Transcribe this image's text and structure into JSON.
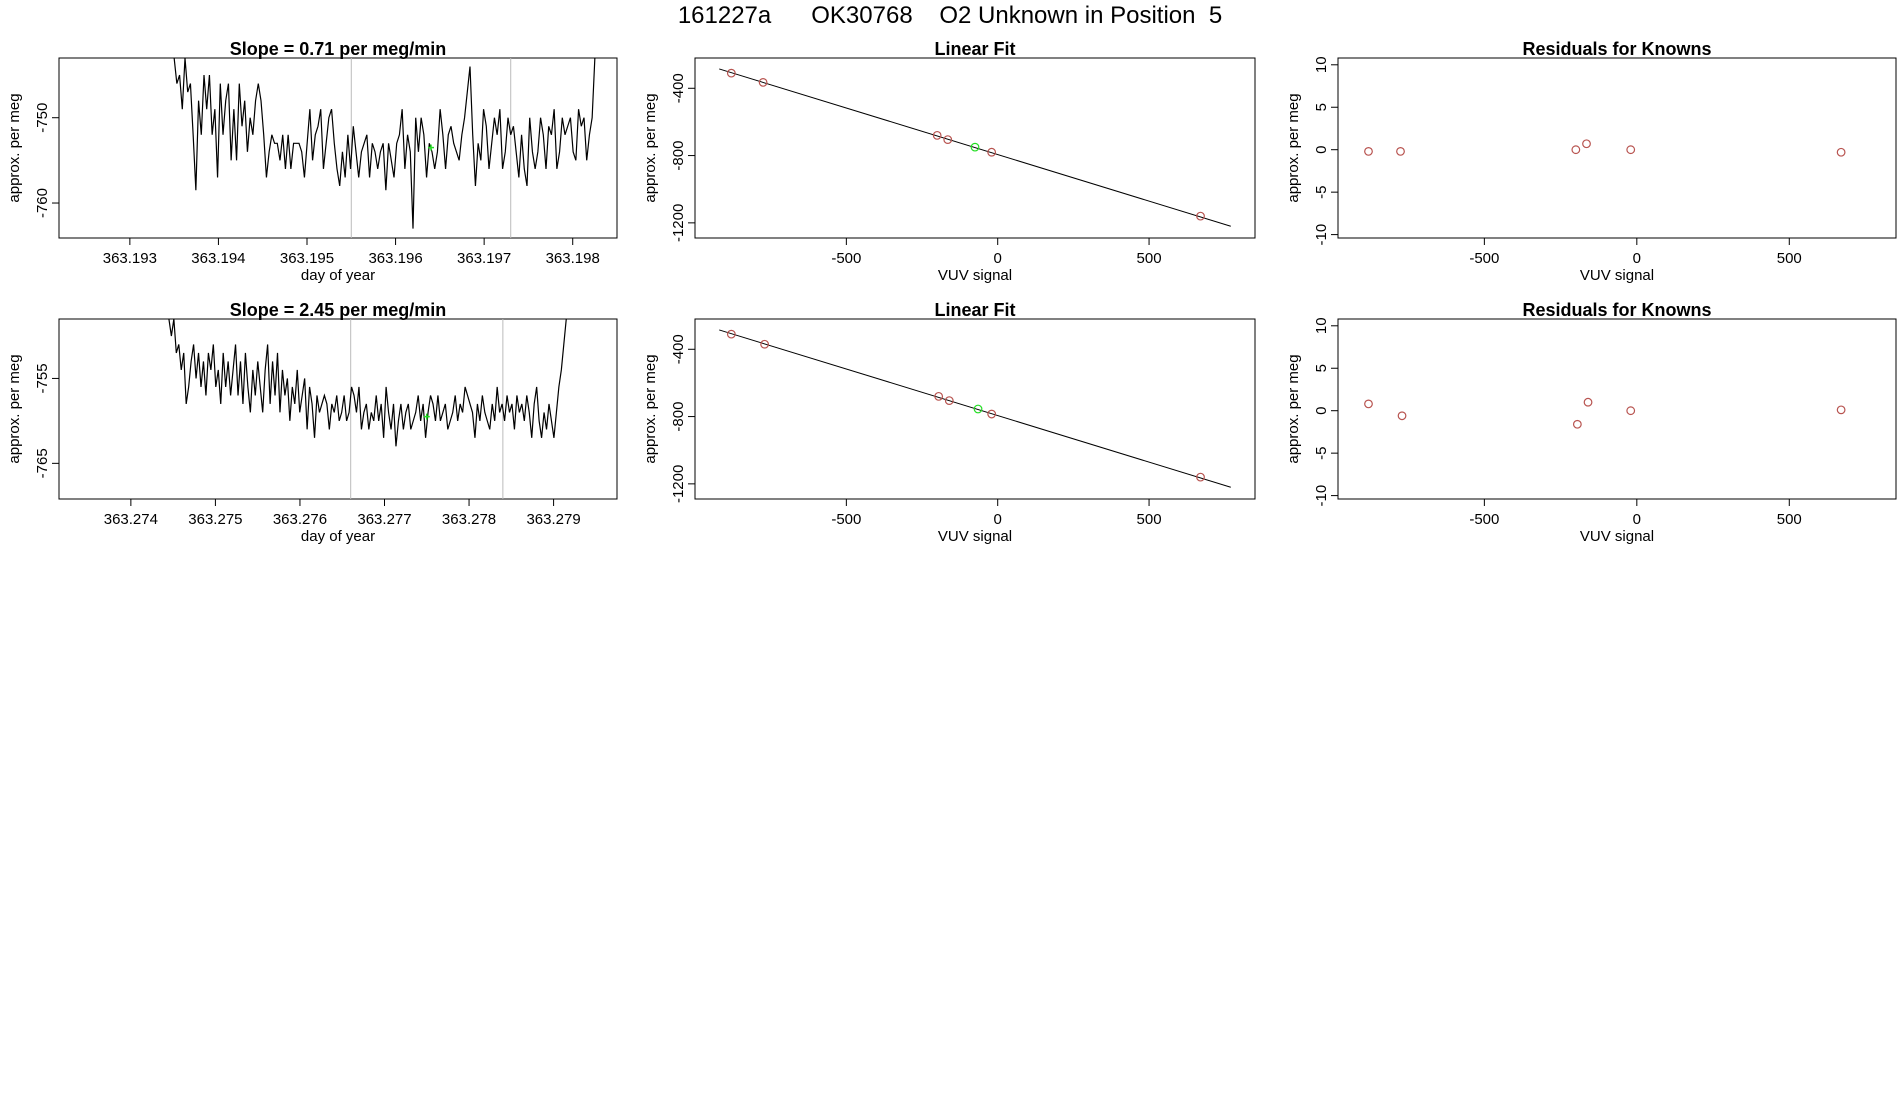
{
  "page": {
    "title": "161227a      OK30768    O2 Unknown in Position  5"
  },
  "colors": {
    "line": "#000000",
    "known_point": "#b85450",
    "unknown_point": "#22dd22",
    "vline": "#bbbbbb"
  },
  "chart_data": [
    {
      "type": "line",
      "title": "Slope =  0.71  per meg/min",
      "xlabel": "day of year",
      "ylabel": "approx. per meg",
      "xlim": [
        363.1922,
        363.1985
      ],
      "ylim": [
        -764.1,
        -743.0
      ],
      "xticks": [
        363.193,
        363.194,
        363.195,
        363.196,
        363.197,
        363.198
      ],
      "xtick_labels": [
        "363.193",
        "363.194",
        "363.195",
        "363.196",
        "363.197",
        "363.198"
      ],
      "yticks": [
        -760,
        -750
      ],
      "ytick_labels": [
        "-760",
        "-750"
      ],
      "vlines": [
        363.1955,
        363.1973
      ],
      "marker": {
        "x": 363.1964,
        "y": -753.5
      },
      "series_x_range": [
        363.1935,
        363.19825
      ],
      "series_y": [
        -743,
        -746,
        -745,
        -749,
        -743,
        -747,
        -746,
        -752,
        -758.5,
        -748,
        -752,
        -745,
        -749,
        -745,
        -752,
        -749,
        -757,
        -746,
        -752,
        -748,
        -746,
        -755,
        -749,
        -755,
        -746,
        -751,
        -748,
        -754,
        -750,
        -752,
        -748,
        -746,
        -748,
        -752,
        -757,
        -754,
        -752,
        -753,
        -753,
        -755,
        -752,
        -756,
        -752,
        -756,
        -753,
        -753,
        -753,
        -754,
        -757,
        -753,
        -749,
        -755,
        -752,
        -751,
        -749,
        -756,
        -753,
        -750,
        -749,
        -753,
        -756,
        -758,
        -754,
        -757,
        -752,
        -756,
        -751,
        -754,
        -757,
        -754,
        -753,
        -752,
        -757,
        -753,
        -754,
        -756,
        -754,
        -753,
        -758.5,
        -753,
        -755,
        -757,
        -753,
        -752,
        -749,
        -756,
        -752,
        -754,
        -763,
        -750,
        -754,
        -750,
        -752,
        -757,
        -753,
        -754,
        -756,
        -754,
        -749,
        -752,
        -756,
        -752,
        -751,
        -753,
        -754,
        -755,
        -752,
        -750,
        -747,
        -744,
        -752,
        -758,
        -753,
        -755,
        -749,
        -751,
        -756,
        -753,
        -750,
        -752,
        -749,
        -756,
        -754,
        -750,
        -752,
        -751,
        -754,
        -757,
        -752,
        -756,
        -758,
        -750,
        -754,
        -756,
        -754,
        -750,
        -752,
        -756,
        -751,
        -752,
        -749,
        -756,
        -754,
        -750,
        -752,
        -751,
        -750,
        -754,
        -755,
        -749,
        -751,
        -750,
        -755,
        -752,
        -750,
        -743
      ]
    },
    {
      "type": "scatter",
      "title": "Linear Fit",
      "xlabel": "VUV signal",
      "ylabel": "approx. per meg",
      "xlim": [
        -1000,
        850
      ],
      "ylim": [
        -1290,
        -220
      ],
      "xticks": [
        -500,
        0,
        500
      ],
      "xtick_labels": [
        "-500",
        "0",
        "500"
      ],
      "yticks": [
        -1200,
        -800,
        -400
      ],
      "ytick_labels": [
        "-1200",
        "-800",
        "-400"
      ],
      "fit_line": {
        "x": [
          -920,
          770
        ],
        "y": [
          -285,
          -1220
        ]
      },
      "points": [
        {
          "x": -880,
          "y": -310,
          "type": "known"
        },
        {
          "x": -775,
          "y": -365,
          "type": "known"
        },
        {
          "x": -200,
          "y": -680,
          "type": "known"
        },
        {
          "x": -165,
          "y": -705,
          "type": "known"
        },
        {
          "x": -20,
          "y": -780,
          "type": "known"
        },
        {
          "x": 670,
          "y": -1160,
          "type": "known"
        },
        {
          "x": -75,
          "y": -750,
          "type": "unknown"
        }
      ]
    },
    {
      "type": "scatter",
      "title": "Residuals for Knowns",
      "xlabel": "VUV signal",
      "ylabel": "approx. per meg",
      "xlim": [
        -980,
        850
      ],
      "ylim": [
        -10.4,
        10.8
      ],
      "xticks": [
        -500,
        0,
        500
      ],
      "xtick_labels": [
        "-500",
        "0",
        "500"
      ],
      "yticks": [
        -10,
        -5,
        0,
        5,
        10
      ],
      "ytick_labels": [
        "-10",
        "-5",
        "0",
        "5",
        "10"
      ],
      "points": [
        {
          "x": -880,
          "y": -0.2,
          "type": "known"
        },
        {
          "x": -775,
          "y": -0.2,
          "type": "known"
        },
        {
          "x": -200,
          "y": 0.0,
          "type": "known"
        },
        {
          "x": -165,
          "y": 0.7,
          "type": "known"
        },
        {
          "x": -20,
          "y": 0.0,
          "type": "known"
        },
        {
          "x": 670,
          "y": -0.3,
          "type": "known"
        }
      ]
    },
    {
      "type": "line",
      "title": "Slope =  2.45  per meg/min",
      "xlabel": "day of year",
      "ylabel": "approx. per meg",
      "xlim": [
        363.27315,
        363.27975
      ],
      "ylim": [
        -769.2,
        -748.0
      ],
      "xticks": [
        363.274,
        363.275,
        363.276,
        363.277,
        363.278,
        363.279
      ],
      "xtick_labels": [
        "363.274",
        "363.275",
        "363.276",
        "363.277",
        "363.278",
        "363.279"
      ],
      "yticks": [
        -765,
        -755
      ],
      "ytick_labels": [
        "-765",
        "-755"
      ],
      "vlines": [
        363.2766,
        363.2784
      ],
      "marker": {
        "x": 363.2775,
        "y": -759.5
      },
      "series_x_range": [
        363.27445,
        363.27915
      ],
      "series_y": [
        -748,
        -750,
        -748,
        -752,
        -751,
        -754,
        -752,
        -758,
        -756,
        -753,
        -751,
        -755,
        -752,
        -756,
        -753,
        -757,
        -752,
        -754,
        -751,
        -756,
        -754,
        -758,
        -752,
        -756,
        -753,
        -757,
        -754,
        -751,
        -757,
        -753,
        -758,
        -752,
        -756,
        -759,
        -754,
        -757,
        -753,
        -756,
        -759,
        -754,
        -751,
        -758,
        -753,
        -757,
        -752,
        -759,
        -754,
        -757,
        -755,
        -760,
        -756,
        -758,
        -754,
        -759,
        -757,
        -755,
        -761,
        -756,
        -758,
        -762,
        -757,
        -759,
        -758,
        -757,
        -758,
        -761,
        -758,
        -759,
        -757,
        -760,
        -759,
        -757,
        -760,
        -759,
        -756,
        -757,
        -759,
        -756,
        -761,
        -759,
        -758,
        -761,
        -759,
        -760,
        -757,
        -760,
        -758,
        -762,
        -756,
        -759,
        -761,
        -758,
        -763,
        -760,
        -758,
        -761,
        -759,
        -758,
        -761,
        -760,
        -759,
        -757,
        -760,
        -758,
        -762,
        -759,
        -757,
        -758,
        -760,
        -757,
        -760,
        -759,
        -758,
        -761,
        -760,
        -759,
        -757,
        -760,
        -758,
        -759,
        -756,
        -757,
        -758,
        -759,
        -762,
        -758,
        -760,
        -757,
        -759,
        -760,
        -761,
        -758,
        -760,
        -756,
        -759,
        -758,
        -760,
        -757,
        -759,
        -758,
        -761,
        -757,
        -759,
        -758,
        -760,
        -757,
        -759,
        -762,
        -758,
        -756,
        -760,
        -762,
        -759,
        -761,
        -758,
        -760,
        -762,
        -759,
        -756,
        -754,
        -751,
        -748
      ]
    },
    {
      "type": "scatter",
      "title": "Linear Fit",
      "xlabel": "VUV signal",
      "ylabel": "approx. per meg",
      "xlim": [
        -1000,
        850
      ],
      "ylim": [
        -1290,
        -220
      ],
      "xticks": [
        -500,
        0,
        500
      ],
      "xtick_labels": [
        "-500",
        "0",
        "500"
      ],
      "yticks": [
        -1200,
        -800,
        -400
      ],
      "ytick_labels": [
        "-1200",
        "-800",
        "-400"
      ],
      "fit_line": {
        "x": [
          -920,
          770
        ],
        "y": [
          -285,
          -1220
        ]
      },
      "points": [
        {
          "x": -880,
          "y": -310,
          "type": "known"
        },
        {
          "x": -770,
          "y": -370,
          "type": "known"
        },
        {
          "x": -195,
          "y": -680,
          "type": "known"
        },
        {
          "x": -160,
          "y": -705,
          "type": "known"
        },
        {
          "x": -20,
          "y": -785,
          "type": "known"
        },
        {
          "x": 670,
          "y": -1160,
          "type": "known"
        },
        {
          "x": -65,
          "y": -755,
          "type": "unknown"
        }
      ]
    },
    {
      "type": "scatter",
      "title": "Residuals for Knowns",
      "xlabel": "VUV signal",
      "ylabel": "approx. per meg",
      "xlim": [
        -980,
        850
      ],
      "ylim": [
        -10.4,
        10.8
      ],
      "xticks": [
        -500,
        0,
        500
      ],
      "xtick_labels": [
        "-500",
        "0",
        "500"
      ],
      "yticks": [
        -10,
        -5,
        0,
        5,
        10
      ],
      "ytick_labels": [
        "-10",
        "-5",
        "0",
        "5",
        "10"
      ],
      "points": [
        {
          "x": -880,
          "y": 0.8,
          "type": "known"
        },
        {
          "x": -770,
          "y": -0.6,
          "type": "known"
        },
        {
          "x": -195,
          "y": -1.6,
          "type": "known"
        },
        {
          "x": -160,
          "y": 1.0,
          "type": "known"
        },
        {
          "x": -20,
          "y": 0.0,
          "type": "known"
        },
        {
          "x": 670,
          "y": 0.1,
          "type": "known"
        }
      ]
    }
  ]
}
